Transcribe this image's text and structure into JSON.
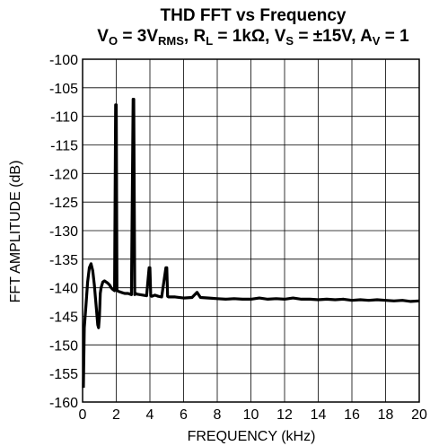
{
  "chart_data": {
    "type": "line",
    "title": {
      "line1": "THD FFT vs Frequency",
      "line2": [
        {
          "text": "V",
          "sub": "O"
        },
        {
          "text": " = 3V",
          "sub": "RMS"
        },
        {
          "text": ", R",
          "sub": "L"
        },
        {
          "text": " = 1kΩ, V",
          "sub": "S"
        },
        {
          "text": " = ±15V, A",
          "sub": "V"
        },
        {
          "text": " = 1"
        }
      ]
    },
    "xlabel": "FREQUENCY (kHz)",
    "ylabel": "FFT AMPLITUDE (dB)",
    "xlim": [
      0,
      20
    ],
    "ylim": [
      -160,
      -100
    ],
    "x_ticks": [
      "0",
      "2",
      "4",
      "6",
      "8",
      "10",
      "12",
      "14",
      "16",
      "18",
      "20"
    ],
    "y_ticks": [
      "-100",
      "-105",
      "-110",
      "-115",
      "-120",
      "-125",
      "-130",
      "-135",
      "-140",
      "-145",
      "-150",
      "-155",
      "-160"
    ],
    "grid": true,
    "line_color": "#000000",
    "series": [
      {
        "x": [
          0.05,
          0.1,
          0.2,
          0.3,
          0.4,
          0.5,
          0.6,
          0.7,
          0.8,
          0.9,
          0.95,
          1.0,
          1.05,
          1.1,
          1.2,
          1.3,
          1.4,
          1.5,
          1.6,
          1.7,
          1.8,
          1.9,
          1.96,
          2.0,
          2.04,
          2.1,
          2.3,
          2.5,
          2.7,
          2.9,
          3.0,
          3.04,
          3.1,
          3.16,
          3.2,
          3.4,
          3.6,
          3.8,
          3.95,
          4.0,
          4.05,
          4.1,
          4.3,
          4.5,
          4.7,
          4.95,
          5.0,
          5.05,
          5.1,
          5.5,
          6.0,
          6.5,
          6.8,
          7.0,
          7.5,
          8.0,
          8.5,
          9.0,
          9.5,
          10.0,
          10.5,
          11.0,
          11.5,
          12.0,
          12.5,
          13.0,
          13.5,
          14.0,
          14.5,
          15.0,
          15.5,
          16.0,
          16.5,
          17.0,
          17.5,
          18.0,
          18.5,
          19.0,
          19.5,
          20.0
        ],
        "y": [
          -157.5,
          -147,
          -143,
          -139,
          -136.5,
          -135.8,
          -137,
          -139.5,
          -143,
          -146.5,
          -147,
          -145,
          -141,
          -140,
          -139,
          -138.8,
          -139,
          -139.2,
          -139.5,
          -140,
          -140.3,
          -140.5,
          -108,
          -108,
          -140.4,
          -140.6,
          -140.8,
          -141,
          -141,
          -141.2,
          -107,
          -107,
          -141.2,
          -141,
          -141.1,
          -141.2,
          -141.3,
          -141.4,
          -136.5,
          -136.5,
          -141.4,
          -141.5,
          -141.3,
          -141.5,
          -141.6,
          -136.5,
          -136.5,
          -141.5,
          -141.6,
          -141.6,
          -141.8,
          -141.7,
          -140.8,
          -141.7,
          -141.8,
          -141.9,
          -142,
          -141.9,
          -142,
          -142,
          -141.8,
          -142,
          -141.9,
          -142,
          -141.8,
          -142,
          -142,
          -142.1,
          -142,
          -142.1,
          -142,
          -142.2,
          -142.1,
          -142.2,
          -142.1,
          -142.2,
          -142.3,
          -142.2,
          -142.4,
          -142.3
        ]
      }
    ]
  }
}
